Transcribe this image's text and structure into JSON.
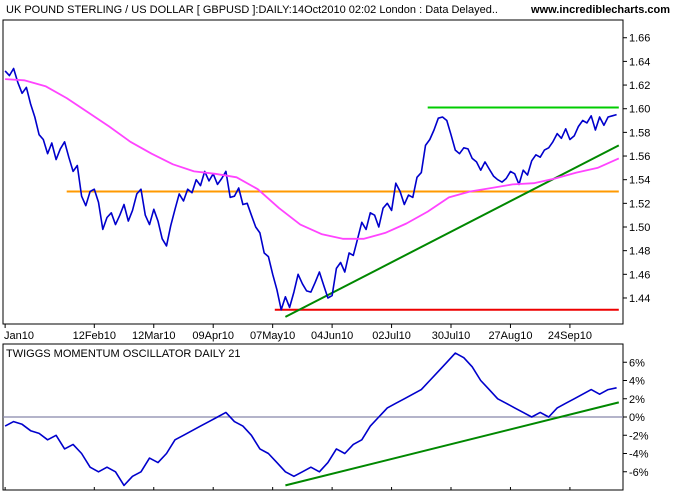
{
  "chart_data": [
    {
      "type": "line",
      "title": "UK POUND STERLING / US DOLLAR [ GBPUSD ]:DAILY:14Oct2010 02:02 London : Data Delayed..",
      "brand": "www.incrediblecharts.com",
      "y_ticks": [
        1.44,
        1.46,
        1.48,
        1.5,
        1.52,
        1.54,
        1.56,
        1.58,
        1.6,
        1.62,
        1.64,
        1.66
      ],
      "y_tick_labels": [
        "1.44",
        "1.46",
        "1.48",
        "1.50",
        "1.52",
        "1.54",
        "1.56",
        "1.58",
        "1.60",
        "1.62",
        "1.64",
        "1.66"
      ],
      "ylim": [
        1.418,
        1.675
      ],
      "x_tick_labels": [
        "Jan10",
        "12Feb10",
        "12Mar10",
        "09Apr10",
        "07May10",
        "04Jun10",
        "02Jul10",
        "30Jul10",
        "27Aug10",
        "24Sep10"
      ],
      "x_tick_days": [
        1,
        43,
        71,
        99,
        127,
        155,
        183,
        211,
        239,
        267
      ],
      "xlim": [
        0,
        292
      ],
      "series": [
        {
          "role": "price",
          "color": "#0000cc",
          "x": [
            1,
            3,
            5,
            7,
            9,
            11,
            13,
            15,
            17,
            19,
            21,
            23,
            25,
            27,
            29,
            31,
            33,
            35,
            37,
            39,
            41,
            43,
            45,
            47,
            49,
            51,
            53,
            55,
            57,
            59,
            61,
            63,
            65,
            67,
            69,
            71,
            73,
            75,
            77,
            79,
            81,
            83,
            85,
            87,
            89,
            91,
            93,
            95,
            97,
            99,
            101,
            103,
            105,
            107,
            109,
            111,
            113,
            115,
            117,
            119,
            121,
            123,
            125,
            127,
            129,
            131,
            133,
            135,
            137,
            139,
            141,
            143,
            145,
            147,
            149,
            151,
            153,
            155,
            157,
            159,
            161,
            163,
            165,
            167,
            169,
            171,
            173,
            175,
            177,
            179,
            181,
            183,
            185,
            187,
            189,
            191,
            193,
            195,
            197,
            199,
            201,
            203,
            205,
            207,
            209,
            211,
            213,
            215,
            217,
            219,
            221,
            223,
            225,
            227,
            229,
            231,
            233,
            235,
            237,
            239,
            241,
            243,
            245,
            247,
            249,
            251,
            253,
            255,
            257,
            259,
            261,
            263,
            265,
            267,
            269,
            271,
            273,
            275,
            277,
            279,
            281,
            283,
            285,
            287,
            289
          ],
          "values": [
            1.632,
            1.628,
            1.634,
            1.622,
            1.613,
            1.618,
            1.604,
            1.593,
            1.578,
            1.574,
            1.562,
            1.571,
            1.557,
            1.566,
            1.572,
            1.559,
            1.547,
            1.552,
            1.526,
            1.518,
            1.53,
            1.532,
            1.521,
            1.498,
            1.508,
            1.512,
            1.502,
            1.51,
            1.519,
            1.505,
            1.514,
            1.528,
            1.532,
            1.51,
            1.502,
            1.515,
            1.505,
            1.49,
            1.484,
            1.501,
            1.515,
            1.528,
            1.522,
            1.532,
            1.529,
            1.54,
            1.535,
            1.547,
            1.539,
            1.545,
            1.536,
            1.541,
            1.547,
            1.525,
            1.526,
            1.533,
            1.519,
            1.52,
            1.51,
            1.5,
            1.495,
            1.478,
            1.475,
            1.46,
            1.447,
            1.43,
            1.441,
            1.432,
            1.445,
            1.46,
            1.452,
            1.446,
            1.445,
            1.453,
            1.462,
            1.451,
            1.44,
            1.442,
            1.465,
            1.47,
            1.462,
            1.478,
            1.476,
            1.49,
            1.504,
            1.498,
            1.512,
            1.51,
            1.5,
            1.516,
            1.52,
            1.514,
            1.537,
            1.53,
            1.519,
            1.527,
            1.525,
            1.542,
            1.546,
            1.569,
            1.574,
            1.582,
            1.592,
            1.593,
            1.59,
            1.578,
            1.565,
            1.562,
            1.567,
            1.566,
            1.558,
            1.555,
            1.548,
            1.555,
            1.549,
            1.543,
            1.54,
            1.538,
            1.541,
            1.547,
            1.545,
            1.536,
            1.548,
            1.544,
            1.556,
            1.561,
            1.559,
            1.565,
            1.567,
            1.572,
            1.579,
            1.575,
            1.583,
            1.574,
            1.577,
            1.585,
            1.59,
            1.588,
            1.594,
            1.582,
            1.593,
            1.586,
            1.593,
            1.594,
            1.595
          ]
        },
        {
          "role": "moving-average",
          "color": "#ff44ff",
          "x": [
            1,
            10,
            20,
            30,
            40,
            50,
            60,
            70,
            80,
            90,
            100,
            110,
            120,
            130,
            140,
            150,
            160,
            170,
            180,
            190,
            200,
            210,
            220,
            230,
            240,
            250,
            260,
            270,
            280,
            290
          ],
          "values": [
            1.625,
            1.624,
            1.619,
            1.609,
            1.597,
            1.585,
            1.572,
            1.562,
            1.553,
            1.547,
            1.545,
            1.542,
            1.532,
            1.516,
            1.502,
            1.494,
            1.49,
            1.49,
            1.495,
            1.503,
            1.513,
            1.525,
            1.53,
            1.533,
            1.536,
            1.537,
            1.541,
            1.546,
            1.55,
            1.558
          ]
        }
      ],
      "reference_lines": [
        {
          "role": "resistance",
          "color": "#00cc00",
          "x": [
            200,
            290
          ],
          "values": [
            1.601,
            1.601
          ]
        },
        {
          "role": "support-level",
          "color": "#ff9900",
          "x": [
            30,
            290
          ],
          "values": [
            1.53,
            1.53
          ]
        },
        {
          "role": "support-low",
          "color": "#ee0000",
          "x": [
            128,
            290
          ],
          "values": [
            1.43,
            1.43
          ]
        },
        {
          "role": "trendline",
          "color": "#008800",
          "x": [
            133,
            290
          ],
          "values": [
            1.424,
            1.569
          ]
        }
      ]
    },
    {
      "type": "line",
      "title": "TWIGGS MOMENTUM OSCILLATOR DAILY 21",
      "y_ticks": [
        -6,
        -4,
        -2,
        0,
        2,
        4,
        6
      ],
      "y_tick_labels": [
        "-6%",
        "-4%",
        "-2%",
        "0%",
        "2%",
        "4%",
        "6%"
      ],
      "ylim": [
        -8,
        8
      ],
      "xlim": [
        0,
        292
      ],
      "zero_line_color": "#8888aa",
      "series": [
        {
          "role": "oscillator",
          "color": "#0000cc",
          "x": [
            1,
            5,
            9,
            13,
            17,
            21,
            25,
            29,
            33,
            37,
            41,
            45,
            49,
            53,
            57,
            61,
            65,
            69,
            73,
            77,
            81,
            85,
            89,
            93,
            97,
            101,
            105,
            109,
            113,
            117,
            121,
            125,
            129,
            133,
            137,
            141,
            145,
            149,
            153,
            157,
            161,
            165,
            169,
            173,
            177,
            181,
            185,
            189,
            193,
            197,
            201,
            205,
            209,
            213,
            217,
            221,
            225,
            229,
            233,
            237,
            241,
            245,
            249,
            253,
            257,
            261,
            265,
            269,
            273,
            277,
            281,
            285,
            289
          ],
          "values": [
            -1.0,
            -0.5,
            -0.8,
            -1.5,
            -1.8,
            -2.5,
            -2.0,
            -3.5,
            -3.0,
            -4.0,
            -5.5,
            -6.0,
            -5.5,
            -6.0,
            -7.5,
            -6.5,
            -6.0,
            -4.5,
            -5.0,
            -4.0,
            -2.5,
            -2.0,
            -1.5,
            -1.0,
            -0.5,
            0.0,
            0.5,
            -0.5,
            -1.0,
            -2.0,
            -3.5,
            -4.0,
            -5.0,
            -6.0,
            -6.5,
            -6.0,
            -5.5,
            -6.0,
            -5.0,
            -3.5,
            -4.0,
            -3.0,
            -2.5,
            -1.0,
            0.0,
            1.0,
            1.5,
            2.0,
            2.5,
            3.0,
            4.0,
            5.0,
            6.0,
            7.0,
            6.5,
            5.5,
            4.0,
            3.0,
            2.0,
            1.5,
            1.0,
            0.5,
            0.0,
            0.5,
            0.0,
            1.0,
            1.5,
            2.0,
            2.5,
            3.0,
            2.5,
            3.0,
            3.2
          ]
        }
      ],
      "reference_lines": [
        {
          "role": "trendline",
          "color": "#008800",
          "x": [
            133,
            290
          ],
          "values": [
            -7.5,
            1.6
          ]
        }
      ]
    }
  ]
}
